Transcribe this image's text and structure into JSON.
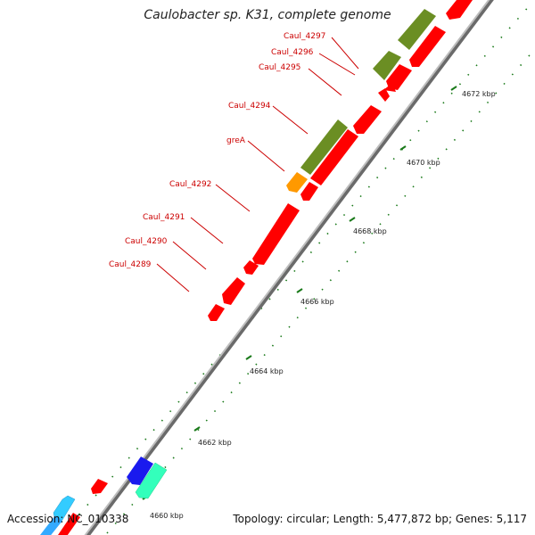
{
  "title": "Caulobacter sp. K31, complete genome",
  "footer": {
    "accession": "Accession: NC_010338",
    "summary": "Topology: circular; Length: 5,477,872 bp; Genes: 5,117"
  },
  "colors": {
    "backbone": "#8a8a8a",
    "tick": "#1a7a1a",
    "cds_red": "#ff0000",
    "cds_olive": "#6b8e23",
    "cds_orange": "#ff9900",
    "cds_blue": "#1a1aee",
    "cds_teal": "#33ffbb",
    "cds_cyan": "#33ccff",
    "label_red": "#cc0000"
  },
  "gene_labels": [
    "Caul_4297",
    "Caul_4296",
    "Caul_4295",
    "Caul_4294",
    "greA",
    "Caul_4292",
    "Caul_4291",
    "Caul_4290",
    "Caul_4289"
  ],
  "kbp_labels": [
    "4672 kbp",
    "4670 kbp",
    "4668 kbp",
    "4666 kbp",
    "4664 kbp",
    "4662 kbp",
    "4660 kbp"
  ]
}
